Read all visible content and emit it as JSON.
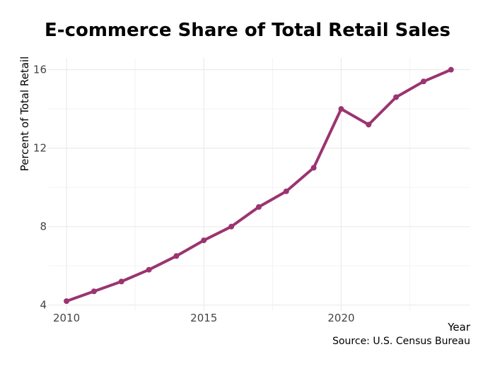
{
  "chart_data": {
    "type": "line",
    "title": "E-commerce Share of Total Retail Sales",
    "xlabel": "Year",
    "ylabel": "Percent of Total Retail",
    "caption": "Source: U.S. Census Bureau",
    "x": [
      2010,
      2011,
      2012,
      2013,
      2014,
      2015,
      2016,
      2017,
      2018,
      2019,
      2020,
      2021,
      2022,
      2023,
      2024
    ],
    "series": [
      {
        "values": [
          4.2,
          4.7,
          5.2,
          5.8,
          6.5,
          7.3,
          8.0,
          9.0,
          9.8,
          11.0,
          14.0,
          13.2,
          14.6,
          15.4,
          16.0
        ]
      }
    ],
    "xlim": [
      2009.2,
      2024.7
    ],
    "ylim": [
      3.7,
      16.6
    ],
    "xticks": [
      "2010",
      "2015",
      "2020"
    ],
    "yticks": [
      "4",
      "8",
      "12",
      "16"
    ],
    "grid": true,
    "legend": "none",
    "colors": {
      "line": "#9b3470",
      "grid": "#ebebeb",
      "background": "#ffffff"
    }
  }
}
